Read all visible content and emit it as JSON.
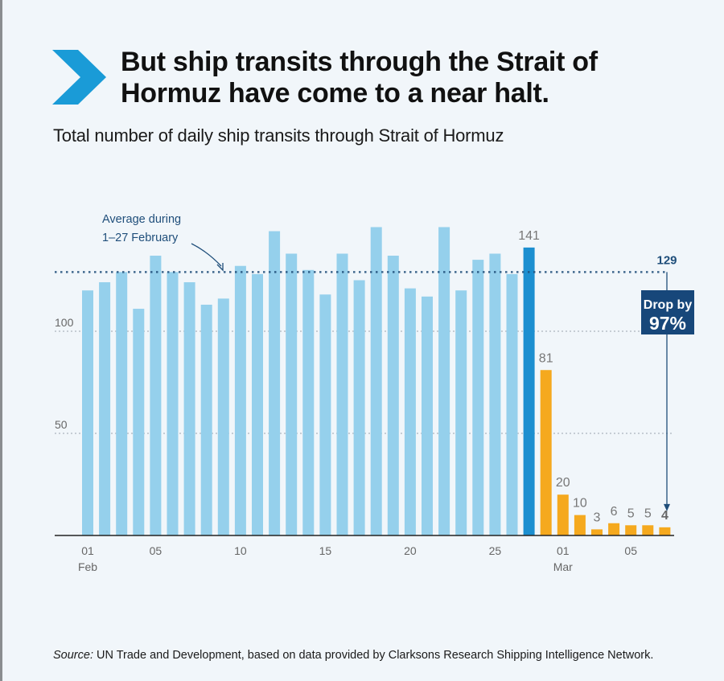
{
  "header": {
    "title": "But ship transits through the Strait of Hormuz have come to a near halt.",
    "subtitle": "Total number of daily ship transits through Strait of Hormuz"
  },
  "footer": {
    "source_label": "Source:",
    "source_text": " UN Trade and Development, based on data provided by Clarksons Research Shipping Intelligence Network."
  },
  "colors": {
    "chevron": "#1a9bd7",
    "bar_feb": "#95d0ec",
    "bar_highlight": "#1c8fd0",
    "bar_mar": "#f5a91e",
    "annotation": "#1f4e7a",
    "drop_box": "#17477a"
  },
  "chart_data": {
    "type": "bar",
    "title": "Total number of daily ship transits through Strait of Hormuz",
    "xlabel": "",
    "ylabel": "",
    "ylim": [
      0,
      155
    ],
    "yticks": [
      50,
      100
    ],
    "grid": true,
    "categories": [
      "Feb 01",
      "Feb 02",
      "Feb 03",
      "Feb 04",
      "Feb 05",
      "Feb 06",
      "Feb 07",
      "Feb 08",
      "Feb 09",
      "Feb 10",
      "Feb 11",
      "Feb 12",
      "Feb 13",
      "Feb 14",
      "Feb 15",
      "Feb 16",
      "Feb 17",
      "Feb 18",
      "Feb 19",
      "Feb 20",
      "Feb 21",
      "Feb 22",
      "Feb 23",
      "Feb 24",
      "Feb 25",
      "Feb 26",
      "Feb 27",
      "Feb 28",
      "Mar 01",
      "Mar 02",
      "Mar 03",
      "Mar 04",
      "Mar 05",
      "Mar 06",
      "Mar 07"
    ],
    "values": [
      120,
      124,
      129,
      111,
      137,
      129,
      124,
      113,
      116,
      132,
      128,
      149,
      138,
      130,
      118,
      138,
      125,
      151,
      137,
      121,
      117,
      151,
      120,
      135,
      138,
      128,
      141,
      81,
      20,
      10,
      3,
      6,
      5,
      5,
      4
    ],
    "groups": [
      "feb",
      "feb",
      "feb",
      "feb",
      "feb",
      "feb",
      "feb",
      "feb",
      "feb",
      "feb",
      "feb",
      "feb",
      "feb",
      "feb",
      "feb",
      "feb",
      "feb",
      "feb",
      "feb",
      "feb",
      "feb",
      "feb",
      "feb",
      "feb",
      "feb",
      "feb",
      "highlight",
      "mar",
      "mar",
      "mar",
      "mar",
      "mar",
      "mar",
      "mar",
      "mar"
    ],
    "labeled_values": [
      {
        "index": 26,
        "text": "141",
        "bold": false
      },
      {
        "index": 27,
        "text": "81",
        "bold": false
      },
      {
        "index": 28,
        "text": "20",
        "bold": false
      },
      {
        "index": 29,
        "text": "10",
        "bold": false
      },
      {
        "index": 30,
        "text": "3",
        "bold": false
      },
      {
        "index": 31,
        "text": "6",
        "bold": false
      },
      {
        "index": 32,
        "text": "5",
        "bold": false
      },
      {
        "index": 33,
        "text": "5",
        "bold": false
      },
      {
        "index": 34,
        "text": "4",
        "bold": true
      }
    ],
    "xticks": [
      {
        "index": 0,
        "label": "01",
        "sublabel": "Feb"
      },
      {
        "index": 4,
        "label": "05",
        "sublabel": ""
      },
      {
        "index": 9,
        "label": "10",
        "sublabel": ""
      },
      {
        "index": 14,
        "label": "15",
        "sublabel": ""
      },
      {
        "index": 19,
        "label": "20",
        "sublabel": ""
      },
      {
        "index": 24,
        "label": "25",
        "sublabel": ""
      },
      {
        "index": 28,
        "label": "01",
        "sublabel": "Mar"
      },
      {
        "index": 32,
        "label": "05",
        "sublabel": ""
      }
    ],
    "average": {
      "value": 129,
      "label": "129",
      "annotation_line1": "Average during",
      "annotation_line2": "1–27 February"
    },
    "drop_callout": {
      "line1": "Drop by",
      "line2": "97%",
      "from_value": 129,
      "to_value": 4
    }
  }
}
